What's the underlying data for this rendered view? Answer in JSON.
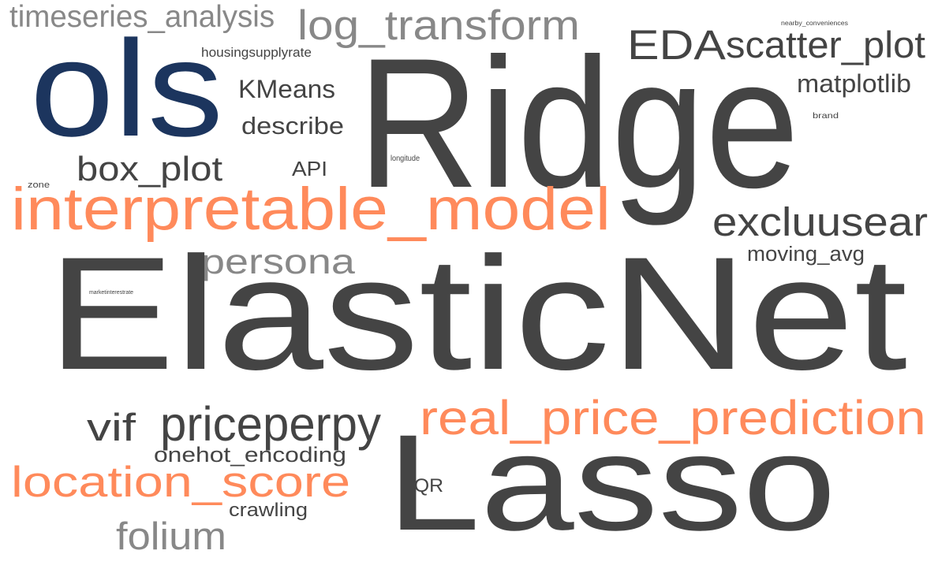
{
  "palette": {
    "dark": "#444444",
    "orange": "#ff8a5b",
    "navy": "#1c355e",
    "gray": "#888888"
  },
  "words": [
    {
      "id": "timeseries_analysis",
      "text": "timeseries_analysis",
      "color": "gray"
    },
    {
      "id": "log_transform",
      "text": "log_transform",
      "color": "gray"
    },
    {
      "id": "nearby_conveniences",
      "text": "nearby_conveniences",
      "color": "dark"
    },
    {
      "id": "ols",
      "text": "ols",
      "color": "navy"
    },
    {
      "id": "housingsupplyrate",
      "text": "housingsupplyrate",
      "color": "dark"
    },
    {
      "id": "Ridge",
      "text": "Ridge",
      "color": "dark"
    },
    {
      "id": "EDA",
      "text": "EDA",
      "color": "dark"
    },
    {
      "id": "scatter_plot",
      "text": "scatter_plot",
      "color": "dark"
    },
    {
      "id": "matplotlib",
      "text": "matplotlib",
      "color": "dark"
    },
    {
      "id": "KMeans",
      "text": "KMeans",
      "color": "dark"
    },
    {
      "id": "describe",
      "text": "describe",
      "color": "dark"
    },
    {
      "id": "brand",
      "text": "brand",
      "color": "dark"
    },
    {
      "id": "longitude",
      "text": "longitude",
      "color": "dark"
    },
    {
      "id": "box_plot",
      "text": "box_plot",
      "color": "dark"
    },
    {
      "id": "API",
      "text": "API",
      "color": "dark"
    },
    {
      "id": "zone",
      "text": "zone",
      "color": "dark"
    },
    {
      "id": "interpretable_model",
      "text": "interpretable_model",
      "color": "orange"
    },
    {
      "id": "excluusear",
      "text": "excluusear",
      "color": "dark"
    },
    {
      "id": "persona",
      "text": "persona",
      "color": "gray"
    },
    {
      "id": "moving_avg",
      "text": "moving_avg",
      "color": "dark"
    },
    {
      "id": "marketinterestrate",
      "text": "marketinterestrate",
      "color": "dark"
    },
    {
      "id": "ElasticNet",
      "text": "ElasticNet",
      "color": "dark"
    },
    {
      "id": "real_price_prediction",
      "text": "real_price_prediction",
      "color": "orange"
    },
    {
      "id": "vif",
      "text": "vif",
      "color": "dark"
    },
    {
      "id": "priceperpy",
      "text": "priceperpy",
      "color": "dark"
    },
    {
      "id": "onehot_encoding",
      "text": "onehot_encoding",
      "color": "dark"
    },
    {
      "id": "location_score",
      "text": "location_score",
      "color": "orange"
    },
    {
      "id": "IQR",
      "text": "IQR",
      "color": "dark"
    },
    {
      "id": "Lasso",
      "text": "Lasso",
      "color": "dark"
    },
    {
      "id": "crawling",
      "text": "crawling",
      "color": "dark"
    },
    {
      "id": "folium",
      "text": "folium",
      "color": "gray"
    }
  ]
}
